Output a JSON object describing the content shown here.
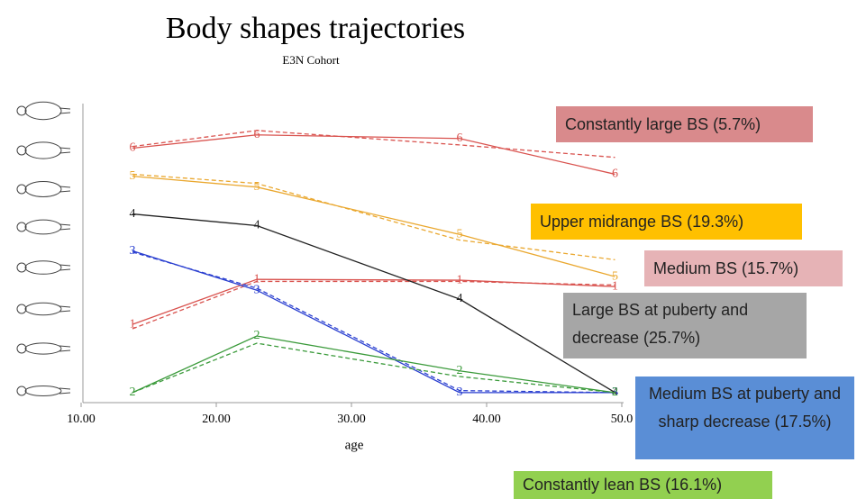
{
  "chart_data": {
    "type": "line",
    "title": "Body shapes trajectories",
    "subtitle": "E3N Cohort",
    "x_label": "age",
    "x": [
      13.8,
      23,
      38,
      49.5
    ],
    "xlim": [
      10,
      50
    ],
    "ylim": [
      0.75,
      8.2
    ],
    "xticks": [
      {
        "value": 10,
        "label": "10.00"
      },
      {
        "value": 20,
        "label": "20.00"
      },
      {
        "value": 30,
        "label": "30.00"
      },
      {
        "value": 40,
        "label": "40.00"
      },
      {
        "value": 50,
        "label": "50.0"
      }
    ],
    "series": [
      {
        "name": "Constantly large BS (5.7%)",
        "marker": "6",
        "color": "#d9534f",
        "label_color": "#d98a8c",
        "values": [
          7.09,
          7.42,
          7.33,
          6.44
        ],
        "predicted": [
          7.13,
          7.53,
          7.17,
          6.86
        ]
      },
      {
        "name": "Upper midrange BS (19.3%)",
        "marker": "5",
        "color": "#eaa830",
        "label_color": "#ffc000",
        "values": [
          6.39,
          6.12,
          4.94,
          3.89
        ],
        "predicted": [
          6.44,
          6.21,
          4.8,
          4.31
        ]
      },
      {
        "name": "Medium BS (15.7%)",
        "marker": "1",
        "color": "#d9534f",
        "label_color": "#e6b3b6",
        "values": [
          2.7,
          3.82,
          3.8,
          3.64
        ],
        "predicted": [
          2.59,
          3.77,
          3.77,
          3.68
        ]
      },
      {
        "name": "Large BS at puberty and decrease (25.7%)",
        "marker": "4",
        "color": "#222222",
        "label_color": "#a6a6a6",
        "values": [
          5.45,
          5.16,
          3.33,
          1.0
        ]
      },
      {
        "name": "Medium BS at puberty and sharp decrease (17.5%)",
        "marker": "3",
        "color": "#2a3fd0",
        "label_color": "#5a8ed6",
        "values": [
          4.53,
          3.55,
          1.0,
          1.0
        ],
        "predicted": [
          4.5,
          3.6,
          1.05,
          1.0
        ]
      },
      {
        "name": "Constantly lean BS (16.1%)",
        "marker": "2",
        "color": "#3a9a3a",
        "label_color": "#92d050",
        "values": [
          1.0,
          2.41,
          1.54,
          1.0
        ],
        "predicted": [
          1.0,
          2.23,
          1.4,
          1.0
        ]
      }
    ]
  }
}
